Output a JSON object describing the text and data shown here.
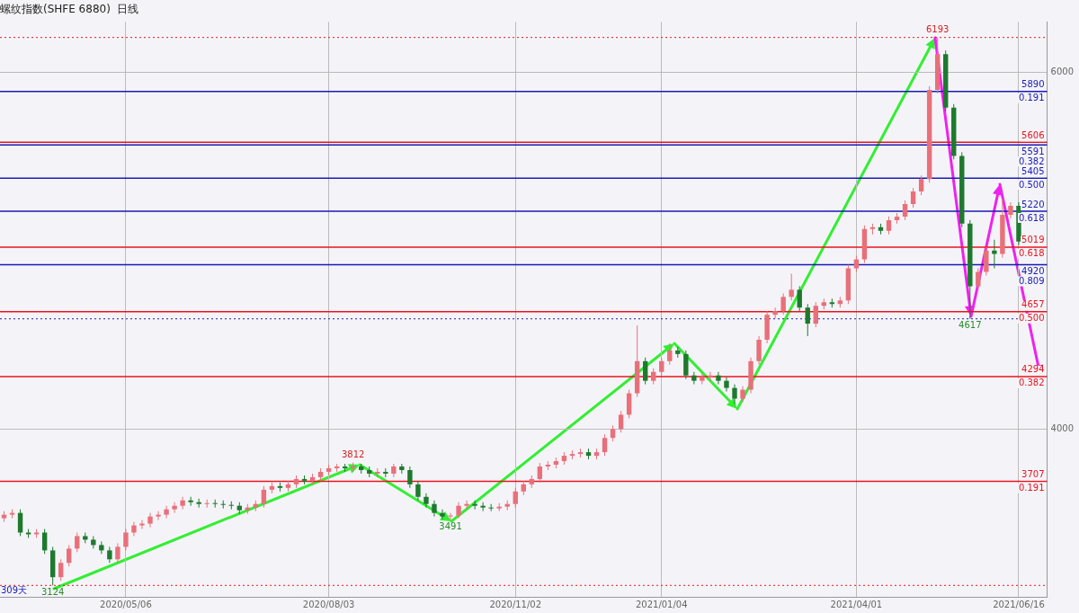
{
  "chart_data": {
    "type": "candlestick",
    "title": "螺纹指数(SHFE 6880)  日线",
    "categories": [
      null,
      null,
      null,
      null,
      null,
      null,
      null,
      null,
      null,
      null,
      null,
      null,
      null,
      null,
      null,
      "2020/05/06",
      null,
      null,
      null,
      null,
      null,
      null,
      null,
      null,
      null,
      null,
      null,
      null,
      null,
      null,
      null,
      null,
      null,
      null,
      null,
      null,
      null,
      null,
      null,
      null,
      "2020/08/03",
      null,
      null,
      null,
      null,
      null,
      null,
      null,
      null,
      null,
      null,
      null,
      null,
      null,
      null,
      null,
      null,
      null,
      null,
      null,
      null,
      null,
      null,
      "2020/11/02",
      null,
      null,
      null,
      null,
      null,
      null,
      null,
      null,
      null,
      null,
      null,
      null,
      null,
      null,
      null,
      null,
      null,
      "2021/01/04",
      null,
      null,
      null,
      null,
      null,
      null,
      null,
      null,
      null,
      null,
      null,
      null,
      null,
      null,
      null,
      null,
      null,
      null,
      null,
      null,
      null,
      null,
      null,
      "2021/04/01",
      null,
      null,
      null,
      null,
      null,
      null,
      null,
      null,
      null,
      null,
      null,
      null,
      null,
      null,
      null,
      null,
      null,
      null,
      null,
      "2021/06/16",
      null,
      null,
      null
    ],
    "ohlc": [
      [
        3500,
        3540,
        3480,
        3520
      ],
      [
        3520,
        3550,
        3500,
        3530
      ],
      [
        3530,
        3550,
        3400,
        3420
      ],
      [
        3420,
        3440,
        3390,
        3410
      ],
      [
        3410,
        3440,
        3390,
        3420
      ],
      [
        3420,
        3440,
        3300,
        3320
      ],
      [
        3320,
        3340,
        3124,
        3170
      ],
      [
        3170,
        3270,
        3150,
        3250
      ],
      [
        3250,
        3350,
        3230,
        3330
      ],
      [
        3330,
        3420,
        3310,
        3400
      ],
      [
        3400,
        3420,
        3360,
        3380
      ],
      [
        3380,
        3400,
        3330,
        3350
      ],
      [
        3350,
        3370,
        3300,
        3320
      ],
      [
        3320,
        3340,
        3250,
        3270
      ],
      [
        3270,
        3360,
        3250,
        3340
      ],
      [
        3340,
        3440,
        3320,
        3420
      ],
      [
        3420,
        3480,
        3400,
        3460
      ],
      [
        3460,
        3490,
        3440,
        3470
      ],
      [
        3470,
        3530,
        3450,
        3510
      ],
      [
        3510,
        3540,
        3490,
        3520
      ],
      [
        3520,
        3570,
        3500,
        3550
      ],
      [
        3550,
        3590,
        3530,
        3570
      ],
      [
        3570,
        3620,
        3550,
        3600
      ],
      [
        3600,
        3620,
        3570,
        3590
      ],
      [
        3590,
        3610,
        3560,
        3580
      ],
      [
        3580,
        3605,
        3560,
        3585
      ],
      [
        3585,
        3605,
        3560,
        3580
      ],
      [
        3580,
        3600,
        3555,
        3575
      ],
      [
        3575,
        3595,
        3550,
        3570
      ],
      [
        3570,
        3590,
        3525,
        3545
      ],
      [
        3545,
        3580,
        3525,
        3560
      ],
      [
        3560,
        3600,
        3540,
        3580
      ],
      [
        3580,
        3680,
        3560,
        3660
      ],
      [
        3660,
        3700,
        3640,
        3680
      ],
      [
        3680,
        3700,
        3650,
        3670
      ],
      [
        3670,
        3710,
        3650,
        3690
      ],
      [
        3690,
        3740,
        3670,
        3720
      ],
      [
        3720,
        3740,
        3690,
        3710
      ],
      [
        3710,
        3750,
        3690,
        3730
      ],
      [
        3730,
        3780,
        3710,
        3760
      ],
      [
        3760,
        3800,
        3740,
        3780
      ],
      [
        3780,
        3805,
        3760,
        3790
      ],
      [
        3790,
        3805,
        3760,
        3780
      ],
      [
        3780,
        3812,
        3760,
        3790
      ],
      [
        3790,
        3805,
        3750,
        3770
      ],
      [
        3770,
        3790,
        3730,
        3750
      ],
      [
        3750,
        3780,
        3730,
        3760
      ],
      [
        3760,
        3780,
        3730,
        3750
      ],
      [
        3750,
        3805,
        3730,
        3790
      ],
      [
        3790,
        3805,
        3750,
        3770
      ],
      [
        3770,
        3790,
        3670,
        3690
      ],
      [
        3690,
        3710,
        3600,
        3620
      ],
      [
        3620,
        3640,
        3560,
        3580
      ],
      [
        3580,
        3600,
        3510,
        3530
      ],
      [
        3530,
        3550,
        3495,
        3510
      ],
      [
        3510,
        3530,
        3491,
        3515
      ],
      [
        3515,
        3590,
        3500,
        3570
      ],
      [
        3570,
        3600,
        3550,
        3580
      ],
      [
        3580,
        3600,
        3550,
        3570
      ],
      [
        3570,
        3590,
        3540,
        3560
      ],
      [
        3560,
        3580,
        3540,
        3555
      ],
      [
        3555,
        3585,
        3540,
        3565
      ],
      [
        3565,
        3600,
        3545,
        3580
      ],
      [
        3580,
        3670,
        3560,
        3650
      ],
      [
        3650,
        3710,
        3630,
        3690
      ],
      [
        3690,
        3740,
        3670,
        3720
      ],
      [
        3720,
        3810,
        3700,
        3790
      ],
      [
        3790,
        3820,
        3770,
        3800
      ],
      [
        3800,
        3840,
        3780,
        3820
      ],
      [
        3820,
        3870,
        3800,
        3850
      ],
      [
        3850,
        3880,
        3830,
        3860
      ],
      [
        3860,
        3890,
        3840,
        3870
      ],
      [
        3870,
        3890,
        3830,
        3850
      ],
      [
        3850,
        3890,
        3830,
        3870
      ],
      [
        3870,
        3970,
        3850,
        3950
      ],
      [
        3950,
        4020,
        3930,
        4000
      ],
      [
        4000,
        4100,
        3980,
        4080
      ],
      [
        4080,
        4220,
        4060,
        4200
      ],
      [
        4200,
        4580,
        4180,
        4380
      ],
      [
        4380,
        4400,
        4250,
        4270
      ],
      [
        4270,
        4340,
        4250,
        4320
      ],
      [
        4320,
        4400,
        4300,
        4380
      ],
      [
        4380,
        4480,
        4360,
        4440
      ],
      [
        4440,
        4460,
        4400,
        4420
      ],
      [
        4420,
        4440,
        4280,
        4300
      ],
      [
        4300,
        4320,
        4250,
        4270
      ],
      [
        4270,
        4310,
        4250,
        4290
      ],
      [
        4290,
        4320,
        4270,
        4300
      ],
      [
        4300,
        4320,
        4250,
        4270
      ],
      [
        4270,
        4290,
        4210,
        4230
      ],
      [
        4230,
        4250,
        4140,
        4170
      ],
      [
        4170,
        4240,
        4150,
        4220
      ],
      [
        4220,
        4400,
        4200,
        4380
      ],
      [
        4380,
        4520,
        4360,
        4500
      ],
      [
        4500,
        4660,
        4480,
        4640
      ],
      [
        4640,
        4680,
        4620,
        4660
      ],
      [
        4660,
        4760,
        4640,
        4740
      ],
      [
        4740,
        4870,
        4720,
        4780
      ],
      [
        4780,
        4800,
        4660,
        4680
      ],
      [
        4680,
        4700,
        4520,
        4590
      ],
      [
        4590,
        4710,
        4570,
        4690
      ],
      [
        4690,
        4730,
        4670,
        4710
      ],
      [
        4710,
        4730,
        4680,
        4700
      ],
      [
        4700,
        4740,
        4680,
        4720
      ],
      [
        4720,
        4920,
        4700,
        4900
      ],
      [
        4900,
        4970,
        4880,
        4950
      ],
      [
        4950,
        5140,
        4930,
        5120
      ],
      [
        5120,
        5150,
        5090,
        5130
      ],
      [
        5130,
        5150,
        5090,
        5110
      ],
      [
        5110,
        5190,
        5090,
        5170
      ],
      [
        5170,
        5210,
        5150,
        5190
      ],
      [
        5190,
        5280,
        5170,
        5260
      ],
      [
        5260,
        5350,
        5240,
        5330
      ],
      [
        5330,
        5420,
        5310,
        5400
      ],
      [
        5400,
        5920,
        5380,
        5900
      ],
      [
        5900,
        6193,
        5880,
        6100
      ],
      [
        6100,
        6120,
        5780,
        5800
      ],
      [
        5800,
        5820,
        5510,
        5530
      ],
      [
        5530,
        5550,
        5130,
        5150
      ],
      [
        5150,
        5170,
        4617,
        4800
      ],
      [
        4800,
        4900,
        4780,
        4880
      ],
      [
        4880,
        5020,
        4860,
        5000
      ],
      [
        5000,
        5060,
        4900,
        4980
      ],
      [
        4980,
        5290,
        4960,
        5200
      ],
      [
        5200,
        5270,
        5180,
        5250
      ],
      [
        5250,
        5270,
        5030,
        5050
      ],
      null,
      null,
      null
    ],
    "colors": [
      "#e8707a",
      "#e8707a",
      "#1e7a2e",
      "#1e7a2e",
      "#e8707a",
      "#1e7a2e",
      "#1e7a2e",
      "#e8707a",
      "#e8707a",
      "#e8707a",
      "#1e7a2e",
      "#1e7a2e",
      "#1e7a2e",
      "#1e7a2e",
      "#e8707a",
      "#e8707a",
      "#e8707a",
      "#e8707a",
      "#e8707a",
      "#e8707a",
      "#e8707a",
      "#e8707a",
      "#e8707a",
      "#1e7a2e",
      "#1e7a2e",
      "#e8707a",
      "#1e7a2e",
      "#1e7a2e",
      "#1e7a2e",
      "#1e7a2e",
      "#e8707a",
      "#e8707a",
      "#e8707a",
      "#e8707a",
      "#1e7a2e",
      "#e8707a",
      "#e8707a",
      "#1e7a2e",
      "#e8707a",
      "#e8707a",
      "#e8707a",
      "#e8707a",
      "#1e7a2e",
      "#e8707a",
      "#1e7a2e",
      "#1e7a2e",
      "#e8707a",
      "#1e7a2e",
      "#e8707a",
      "#1e7a2e",
      "#1e7a2e",
      "#1e7a2e",
      "#1e7a2e",
      "#1e7a2e",
      "#1e7a2e",
      "#e8707a",
      "#e8707a",
      "#e8707a",
      "#1e7a2e",
      "#1e7a2e",
      "#1e7a2e",
      "#e8707a",
      "#e8707a",
      "#e8707a",
      "#e8707a",
      "#e8707a",
      "#e8707a",
      "#e8707a",
      "#e8707a",
      "#e8707a",
      "#e8707a",
      "#e8707a",
      "#1e7a2e",
      "#e8707a",
      "#e8707a",
      "#e8707a",
      "#e8707a",
      "#e8707a",
      "#e8707a",
      "#1e7a2e",
      "#e8707a",
      "#e8707a",
      "#e8707a",
      "#1e7a2e",
      "#1e7a2e",
      "#1e7a2e",
      "#e8707a",
      "#e8707a",
      "#1e7a2e",
      "#1e7a2e",
      "#1e7a2e",
      "#e8707a",
      "#e8707a",
      "#e8707a",
      "#e8707a",
      "#e8707a",
      "#e8707a",
      "#e8707a",
      "#1e7a2e",
      "#1e7a2e",
      "#e8707a",
      "#e8707a",
      "#1e7a2e",
      "#e8707a",
      "#e8707a",
      "#e8707a",
      "#e8707a",
      "#e8707a",
      "#1e7a2e",
      "#e8707a",
      "#e8707a",
      "#e8707a",
      "#e8707a",
      "#e8707a",
      "#e8707a",
      "#e8707a",
      "#1e7a2e",
      "#1e7a2e",
      "#1e7a2e",
      "#1e7a2e",
      "#e8707a",
      "#e8707a",
      "#1e7a2e",
      "#e8707a",
      "#e8707a",
      "#1e7a2e",
      null,
      null,
      null
    ],
    "ylim": [
      3060,
      6280
    ],
    "yticks": [
      4000,
      6000
    ],
    "grid": true,
    "ref_lines": [
      {
        "axis": "y",
        "value": 6193,
        "color": "#e8141e",
        "line_style": "dotted"
      },
      {
        "axis": "y",
        "value": 5890,
        "label": "5890 0.191",
        "color": "#1a1ab4"
      },
      {
        "axis": "y",
        "value": 5606,
        "label": "5606",
        "color": "#e8141e"
      },
      {
        "axis": "y",
        "value": 5591,
        "label": "5591 0.382",
        "color": "#1a1ab4"
      },
      {
        "axis": "y",
        "value": 5405,
        "label": "5405 0.500",
        "color": "#1a1ab4"
      },
      {
        "axis": "y",
        "value": 5220,
        "label": "5220 0.618",
        "color": "#1a1ab4"
      },
      {
        "axis": "y",
        "value": 5019,
        "label": "5019 0.618",
        "color": "#e8141e"
      },
      {
        "axis": "y",
        "value": 4920,
        "label": "4920 0.809",
        "color": "#1a1ab4"
      },
      {
        "axis": "y",
        "value": 4657,
        "label": "4657 0.500",
        "color": "#e8141e"
      },
      {
        "axis": "y",
        "value": 4617,
        "color": "#1a1ab4",
        "line_style": "dotted"
      },
      {
        "axis": "y",
        "value": 4294,
        "label": "4294 0.382",
        "color": "#e8141e"
      },
      {
        "axis": "y",
        "value": 3707,
        "label": "3707 0.191",
        "color": "#e8141e"
      },
      {
        "axis": "y",
        "value": 3124,
        "color": "#e8141e",
        "line_style": "dotted"
      }
    ],
    "annotations": [
      {
        "text": "3124",
        "y": 3124
      },
      {
        "text": "3812",
        "y": 3812
      },
      {
        "text": "3491",
        "y": 3491
      },
      {
        "text": "6193",
        "y": 6193
      },
      {
        "text": "4617",
        "y": 4617
      },
      "309天"
    ]
  }
}
